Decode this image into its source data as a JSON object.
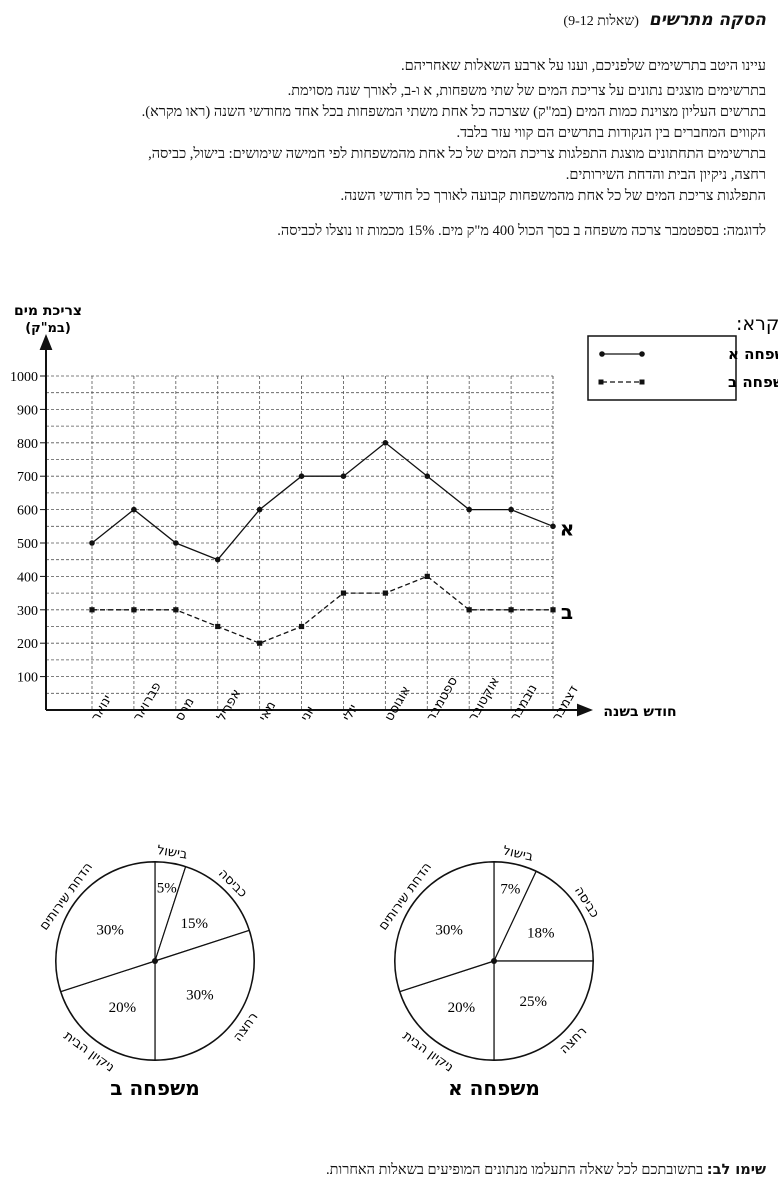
{
  "header": {
    "title": "הסקה מתרשים",
    "question_range": "(שאלות 9-12)"
  },
  "intro": {
    "p1": "עיינו היטב בתרשימים שלפניכם, וענו על ארבע השאלות שאחריהם.",
    "p2": "בתרשימים מוצגים נתונים על צריכת המים של שתי משפחות, א ו-ב, לאורך שנה מסוימת.",
    "p3": "בתרשים העליון מצוינת כמות המים (במ\"ק) שצרכה כל אחת משתי המשפחות בכל אחד מחודשי השנה (ראו מקרא).",
    "p4": "הקווים המחברים בין הנקודות בתרשים הם קווי עזר בלבד.",
    "p5": "בתרשימים התחתונים מוצגת התפלגות צריכת המים של כל אחת מהמשפחות לפי חמישה שימושים: בישול, כביסה,",
    "p5b": "רחצה, ניקיון הבית והדחת השירותים.",
    "p6": "התפלגות צריכת המים של כל אחת מהמשפחות קבועה לאורך כל חודשי השנה.",
    "example": "לדוגמה: בספטמבר צרכה משפחה ב בסך הכול 400 מ\"ק מים. 15% מכמות זו נוצלו לכביסה."
  },
  "chart_data": [
    {
      "type": "line",
      "ylabel_line1": "צריכת מים",
      "ylabel_line2": "(במ\"ק)",
      "xlabel": "חודש בשנה",
      "ylim": [
        0,
        1000
      ],
      "yticks": [
        100,
        200,
        300,
        400,
        500,
        600,
        700,
        800,
        900,
        1000
      ],
      "grid": true,
      "categories": [
        "ינואר",
        "פברואר",
        "מרס",
        "אפריל",
        "מאי",
        "יוני",
        "יולי",
        "אוגוסט",
        "ספטמבר",
        "אוקטובר",
        "נובמבר",
        "דצמבר"
      ],
      "series": [
        {
          "name": "משפחה א",
          "end_label": "א",
          "style": "solid",
          "values": [
            500,
            600,
            500,
            450,
            600,
            700,
            700,
            800,
            700,
            600,
            600,
            550
          ]
        },
        {
          "name": "משפחה ב",
          "end_label": "ב",
          "style": "dashed",
          "values": [
            300,
            300,
            300,
            250,
            200,
            250,
            350,
            350,
            400,
            300,
            300,
            300
          ]
        }
      ],
      "legend": {
        "title": "מקרא:",
        "placement": "top-right"
      }
    },
    {
      "type": "pie",
      "title": "משפחה ב",
      "slices": [
        {
          "label": "בישול",
          "value": 5,
          "text": "5%"
        },
        {
          "label": "כביסה",
          "value": 15,
          "text": "15%"
        },
        {
          "label": "רחצה",
          "value": 30,
          "text": "30%"
        },
        {
          "label": "ניקיון הבית",
          "value": 20,
          "text": "20%"
        },
        {
          "label": "הדחת שירותים",
          "value": 30,
          "text": "30%"
        }
      ]
    },
    {
      "type": "pie",
      "title": "משפחה א",
      "slices": [
        {
          "label": "בישול",
          "value": 7,
          "text": "7%"
        },
        {
          "label": "כביסה",
          "value": 18,
          "text": "18%"
        },
        {
          "label": "רחצה",
          "value": 25,
          "text": "25%"
        },
        {
          "label": "ניקיון הבית",
          "value": 20,
          "text": "20%"
        },
        {
          "label": "הדחת שירותים",
          "value": 30,
          "text": "30%"
        }
      ]
    }
  ],
  "footer": {
    "label": "שימו לב:",
    "text": " בתשובתכם לכל שאלה התעלמו מנתונים המופיעים בשאלות האחרות."
  },
  "colors": {
    "ink": "#111111",
    "grid": "#555555"
  }
}
